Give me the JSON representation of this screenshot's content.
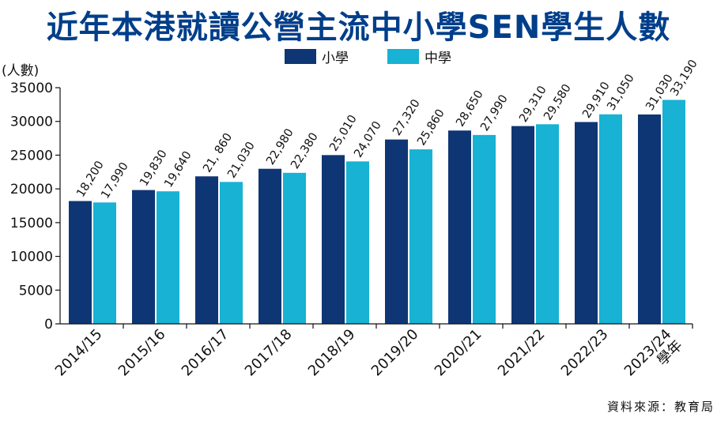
{
  "chart_data": {
    "type": "bar",
    "title": "近年本港就讀公營主流中小學SEN學生人數",
    "ylabel": "(人數)",
    "xlabel": "",
    "ylim": [
      0,
      35000
    ],
    "yticks": [
      0,
      5000,
      10000,
      15000,
      20000,
      25000,
      30000,
      35000
    ],
    "categories": [
      "2014/15",
      "2015/16",
      "2016/17",
      "2017/18",
      "2018/19",
      "2019/20",
      "2020/21",
      "2021/22",
      "2022/23",
      "2023/24學年"
    ],
    "series": [
      {
        "name": "小學",
        "color": "#0f3674",
        "values": [
          18200,
          19830,
          21860,
          22980,
          25010,
          27320,
          28650,
          29310,
          29910,
          31030
        ],
        "labels": [
          "18,200",
          "19,830",
          "21, 860",
          "22,980",
          "25,010",
          "27,320",
          "28,650",
          "29,310",
          "29,910",
          "31,030"
        ]
      },
      {
        "name": "中學",
        "color": "#17b2d4",
        "values": [
          17990,
          19640,
          21030,
          22380,
          24070,
          25860,
          27990,
          29580,
          31050,
          33190
        ],
        "labels": [
          "17,990",
          "19,640",
          "21,030",
          "22,380",
          "24,070",
          "25,860",
          "27,990",
          "29,580",
          "31,050",
          "33,190"
        ]
      }
    ],
    "legend_position": "top",
    "grid": false,
    "source": "資料來源：教育局"
  }
}
